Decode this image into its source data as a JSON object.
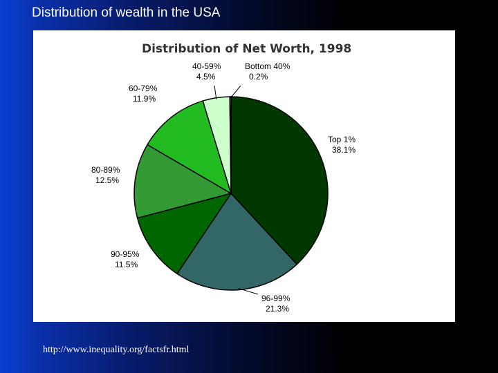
{
  "slide": {
    "title": "Distribution of wealth in the USA",
    "source": "http://www.inequality.org/factsfr.html"
  },
  "chart_data": {
    "type": "pie",
    "title": "Distribution of Net Worth, 1998",
    "categories": [
      "Top 1%",
      "96-99%",
      "90-95%",
      "80-89%",
      "60-79%",
      "40-59%",
      "Bottom 40%"
    ],
    "values": [
      38.1,
      21.3,
      11.5,
      12.5,
      11.9,
      4.5,
      0.2
    ],
    "value_labels": [
      "38.1%",
      "21.3%",
      "11.5%",
      "12.5%",
      "11.9%",
      "4.5%",
      "0.2%"
    ],
    "colors": [
      "#003800",
      "#336666",
      "#006600",
      "#339933",
      "#22bb22",
      "#ccffcc",
      "#ffffff"
    ],
    "start_angle_deg": 0,
    "direction": "clockwise"
  }
}
